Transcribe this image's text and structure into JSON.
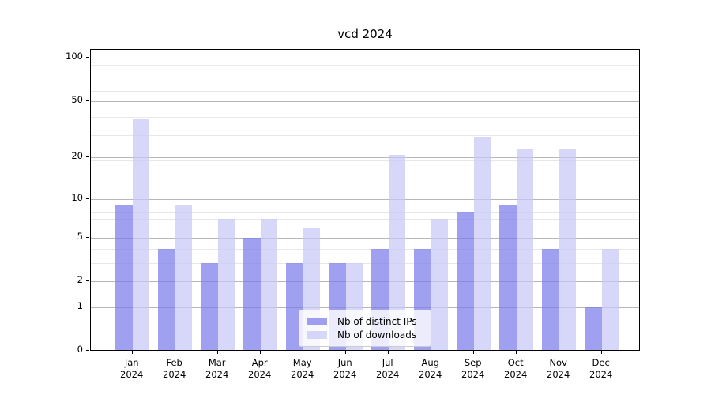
{
  "title": "vcd 2024",
  "chart_data": {
    "type": "bar",
    "categories": [
      "Jan 2024",
      "Feb 2024",
      "Mar 2024",
      "Apr 2024",
      "May 2024",
      "Jun 2024",
      "Jul 2024",
      "Aug 2024",
      "Sep 2024",
      "Oct 2024",
      "Nov 2024",
      "Dec 2024"
    ],
    "series": [
      {
        "name": "Nb of distinct IPs",
        "color": "rgba(124,124,235,0.72)",
        "values": [
          9,
          4,
          3,
          5,
          3,
          3,
          4,
          4,
          8,
          9,
          4,
          1
        ]
      },
      {
        "name": "Nb of downloads",
        "color": "rgba(200,200,246,0.72)",
        "values": [
          38,
          9,
          7,
          7,
          6,
          3,
          21,
          7,
          28,
          23,
          23,
          4
        ]
      }
    ],
    "yscale": "log(1+x)",
    "yticks_major": [
      0,
      1,
      2,
      5,
      10,
      20,
      50,
      100
    ],
    "yticks_minor": [
      3,
      4,
      6,
      7,
      8,
      9,
      19,
      29,
      39,
      49,
      59,
      69,
      79,
      89
    ],
    "ylim": [
      0,
      113
    ],
    "grid": true,
    "legend_position": "lower center",
    "colors": {
      "ips_bar": "#a2a2f1",
      "downloads_bar": "#d8d8f8",
      "grid_major": "#b6b6b6",
      "grid_minor": "#e8e8e8"
    }
  }
}
